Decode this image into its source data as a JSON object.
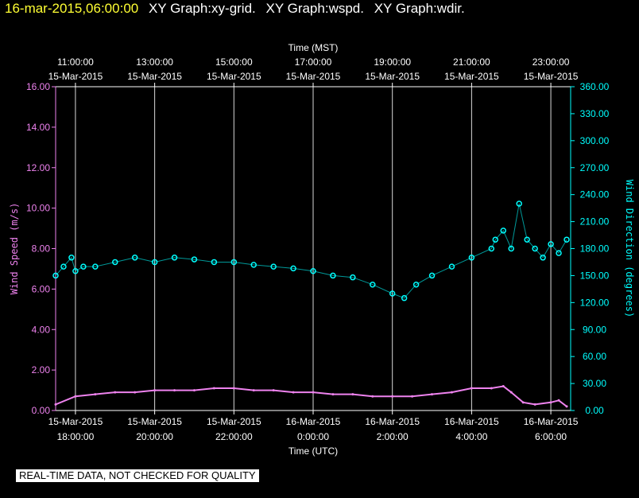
{
  "header": {
    "timestamp": "16-mar-2015,06:00:00",
    "graphs": [
      "XY Graph:xy-grid.",
      "XY Graph:wspd.",
      "XY Graph:wdir."
    ]
  },
  "notice": "REAL-TIME DATA, NOT CHECKED FOR QUALITY",
  "colors": {
    "background": "#000000",
    "grid": "#ffffff",
    "speed": "#ee82ee",
    "direction": "#00ffff",
    "header_timestamp": "#ffff33"
  },
  "chart_data": {
    "type": "scatter",
    "title": "",
    "x_start_utc_hours": 17.5,
    "x_end_utc_hours": 30.5,
    "top_axis": {
      "label": "Time (MST)",
      "ticks": [
        {
          "at": 18,
          "time": "11:00:00",
          "date": "15-Mar-2015"
        },
        {
          "at": 20,
          "time": "13:00:00",
          "date": "15-Mar-2015"
        },
        {
          "at": 22,
          "time": "15:00:00",
          "date": "15-Mar-2015"
        },
        {
          "at": 24,
          "time": "17:00:00",
          "date": "15-Mar-2015"
        },
        {
          "at": 26,
          "time": "19:00:00",
          "date": "15-Mar-2015"
        },
        {
          "at": 28,
          "time": "21:00:00",
          "date": "15-Mar-2015"
        },
        {
          "at": 30,
          "time": "23:00:00",
          "date": "15-Mar-2015"
        }
      ]
    },
    "bottom_axis": {
      "label": "Time (UTC)",
      "ticks": [
        {
          "at": 18,
          "date": "15-Mar-2015",
          "time": "18:00:00"
        },
        {
          "at": 20,
          "date": "15-Mar-2015",
          "time": "20:00:00"
        },
        {
          "at": 22,
          "date": "15-Mar-2015",
          "time": "22:00:00"
        },
        {
          "at": 24,
          "date": "16-Mar-2015",
          "time": "0:00:00"
        },
        {
          "at": 26,
          "date": "16-Mar-2015",
          "time": "2:00:00"
        },
        {
          "at": 28,
          "date": "16-Mar-2015",
          "time": "4:00:00"
        },
        {
          "at": 30,
          "date": "16-Mar-2015",
          "time": "6:00:00"
        }
      ]
    },
    "left_axis": {
      "label": "Wind Speed (m/s)",
      "ylim": [
        0,
        16
      ],
      "ticks": [
        "0.00",
        "2.00",
        "4.00",
        "6.00",
        "8.00",
        "10.00",
        "12.00",
        "14.00",
        "16.00"
      ]
    },
    "right_axis": {
      "label": "Wind Direction (degrees)",
      "ylim": [
        0,
        360
      ],
      "ticks": [
        "0.00",
        "30.00",
        "60.00",
        "90.00",
        "120.00",
        "150.00",
        "180.00",
        "210.00",
        "240.00",
        "270.00",
        "300.00",
        "330.00",
        "360.00"
      ]
    },
    "grid": true,
    "series": [
      {
        "axis": "left",
        "style": "line",
        "x": [
          17.5,
          18.0,
          18.5,
          19.0,
          19.5,
          20.0,
          20.5,
          21.0,
          21.5,
          22.0,
          22.5,
          23.0,
          23.5,
          24.0,
          24.5,
          25.0,
          25.5,
          26.0,
          26.5,
          27.0,
          27.5,
          28.0,
          28.5,
          28.8,
          29.0,
          29.3,
          29.6,
          30.0,
          30.2,
          30.4
        ],
        "y": [
          0.3,
          0.7,
          0.8,
          0.9,
          0.9,
          1.0,
          1.0,
          1.0,
          1.1,
          1.1,
          1.0,
          1.0,
          0.9,
          0.9,
          0.8,
          0.8,
          0.7,
          0.7,
          0.7,
          0.8,
          0.9,
          1.1,
          1.1,
          1.2,
          0.9,
          0.4,
          0.3,
          0.4,
          0.5,
          0.2
        ]
      },
      {
        "axis": "right",
        "style": "markers",
        "x": [
          17.5,
          17.7,
          17.9,
          18.0,
          18.2,
          18.5,
          19.0,
          19.5,
          20.0,
          20.5,
          21.0,
          21.5,
          22.0,
          22.5,
          23.0,
          23.5,
          24.0,
          24.5,
          25.0,
          25.5,
          26.0,
          26.3,
          26.6,
          27.0,
          27.5,
          28.0,
          28.5,
          28.6,
          28.8,
          29.0,
          29.2,
          29.4,
          29.6,
          29.8,
          30.0,
          30.2,
          30.4
        ],
        "y": [
          150,
          160,
          170,
          155,
          160,
          160,
          165,
          170,
          165,
          170,
          168,
          165,
          165,
          162,
          160,
          158,
          155,
          150,
          148,
          140,
          130,
          125,
          140,
          150,
          160,
          170,
          180,
          190,
          200,
          180,
          230,
          190,
          180,
          170,
          185,
          175,
          190
        ]
      }
    ]
  }
}
